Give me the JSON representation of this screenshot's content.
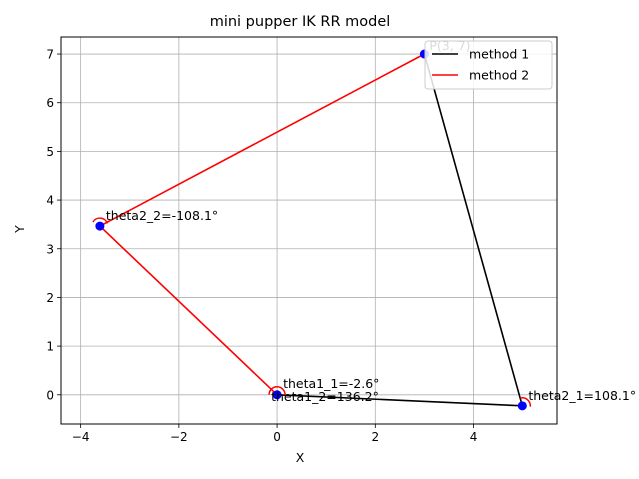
{
  "chart_data": {
    "type": "line",
    "title": "mini pupper IK RR model",
    "xlabel": "X",
    "ylabel": "Y",
    "xlim": [
      -4.4,
      5.7
    ],
    "ylim": [
      -0.6,
      7.35
    ],
    "xticks": [
      -4,
      -2,
      0,
      2,
      4
    ],
    "yticks": [
      0,
      1,
      2,
      3,
      4,
      5,
      6,
      7
    ],
    "grid": true,
    "legend_position": "upper right",
    "series": [
      {
        "name": "method 1",
        "color": "#000000",
        "x": [
          0,
          4.994,
          3
        ],
        "y": [
          0,
          -0.227,
          7
        ]
      },
      {
        "name": "method 2",
        "color": "#ff0000",
        "x": [
          0,
          -3.608,
          3
        ],
        "y": [
          0,
          3.466,
          7
        ]
      }
    ],
    "points": [
      {
        "x": 0,
        "y": 0
      },
      {
        "x": 4.994,
        "y": -0.227
      },
      {
        "x": 3,
        "y": 7
      },
      {
        "x": -3.608,
        "y": 3.466
      }
    ],
    "point_color": "#0000ff",
    "arc_color": "#ff0000",
    "annotations": [
      {
        "text": "P(3, 7)",
        "x": 3,
        "y": 7
      },
      {
        "text": "theta1_1=-2.6°",
        "x": 0,
        "y": 0
      },
      {
        "text": "theta1_2=136.2°",
        "x": 0,
        "y": 0
      },
      {
        "text": "theta2_1=108.1°",
        "x": 4.994,
        "y": -0.227
      },
      {
        "text": "theta2_2=-108.1°",
        "x": -3.608,
        "y": 3.466
      }
    ]
  }
}
